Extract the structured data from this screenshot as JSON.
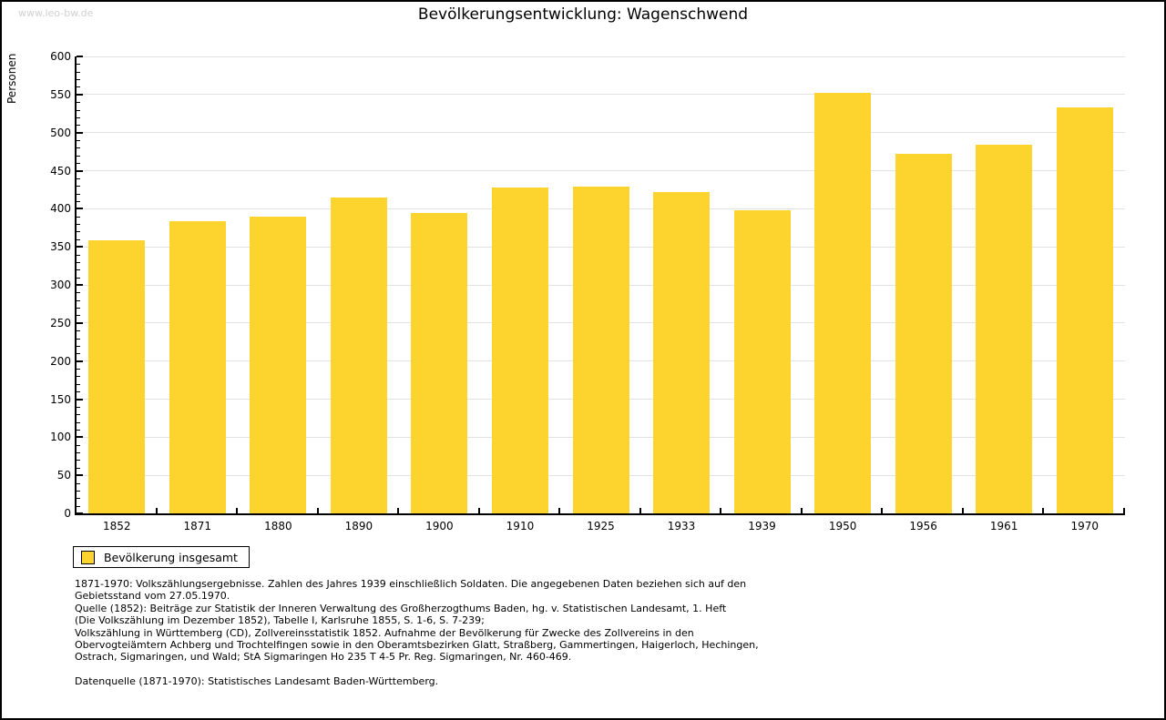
{
  "watermark": "www.leo-bw.de",
  "title": "Bevölkerungsentwicklung: Wagenschwend",
  "chart_data": {
    "type": "bar",
    "title": "Bevölkerungsentwicklung: Wagenschwend",
    "xlabel": "",
    "ylabel": "Personen",
    "categories": [
      "1852",
      "1871",
      "1880",
      "1890",
      "1900",
      "1910",
      "1925",
      "1933",
      "1939",
      "1950",
      "1956",
      "1961",
      "1970"
    ],
    "values": [
      359,
      384,
      390,
      415,
      394,
      428,
      429,
      422,
      398,
      552,
      472,
      484,
      533
    ],
    "ylim": [
      0,
      600
    ],
    "ytick_step": 50,
    "ytick_minor_step": 10,
    "grid": true,
    "bar_color": "#fdd42d",
    "legend_entries": [
      "Bevölkerung insgesamt"
    ],
    "legend_position": "bottom-left"
  },
  "legend": {
    "label": "Bevölkerung insgesamt",
    "swatch_color": "#fdd42d"
  },
  "footnotes": {
    "lines": [
      "1871-1970: Volkszählungsergebnisse. Zahlen des Jahres 1939 einschließlich Soldaten. Die angegebenen Daten beziehen sich auf den",
      "Gebietsstand vom 27.05.1970.",
      "Quelle (1852): Beiträge zur Statistik der Inneren Verwaltung des Großherzogthums Baden, hg. v. Statistischen Landesamt, 1. Heft",
      "(Die Volkszählung im Dezember 1852), Tabelle I, Karlsruhe 1855, S. 1-6, S. 7-239;",
      "Volkszählung in Württemberg (CD), Zollvereinsstatistik 1852. Aufnahme der Bevölkerung für Zwecke des Zollvereins in den",
      "Obervogteiämtern Achberg und Trochtelfingen sowie in den Oberamtsbezirken Glatt, Straßberg, Gammertingen, Haigerloch, Hechingen,",
      "Ostrach, Sigmaringen, und Wald; StA Sigmaringen Ho 235 T 4-5 Pr. Reg. Sigmaringen, Nr. 460-469."
    ],
    "datasource": "Datenquelle (1871-1970): Statistisches Landesamt Baden-Württemberg."
  }
}
